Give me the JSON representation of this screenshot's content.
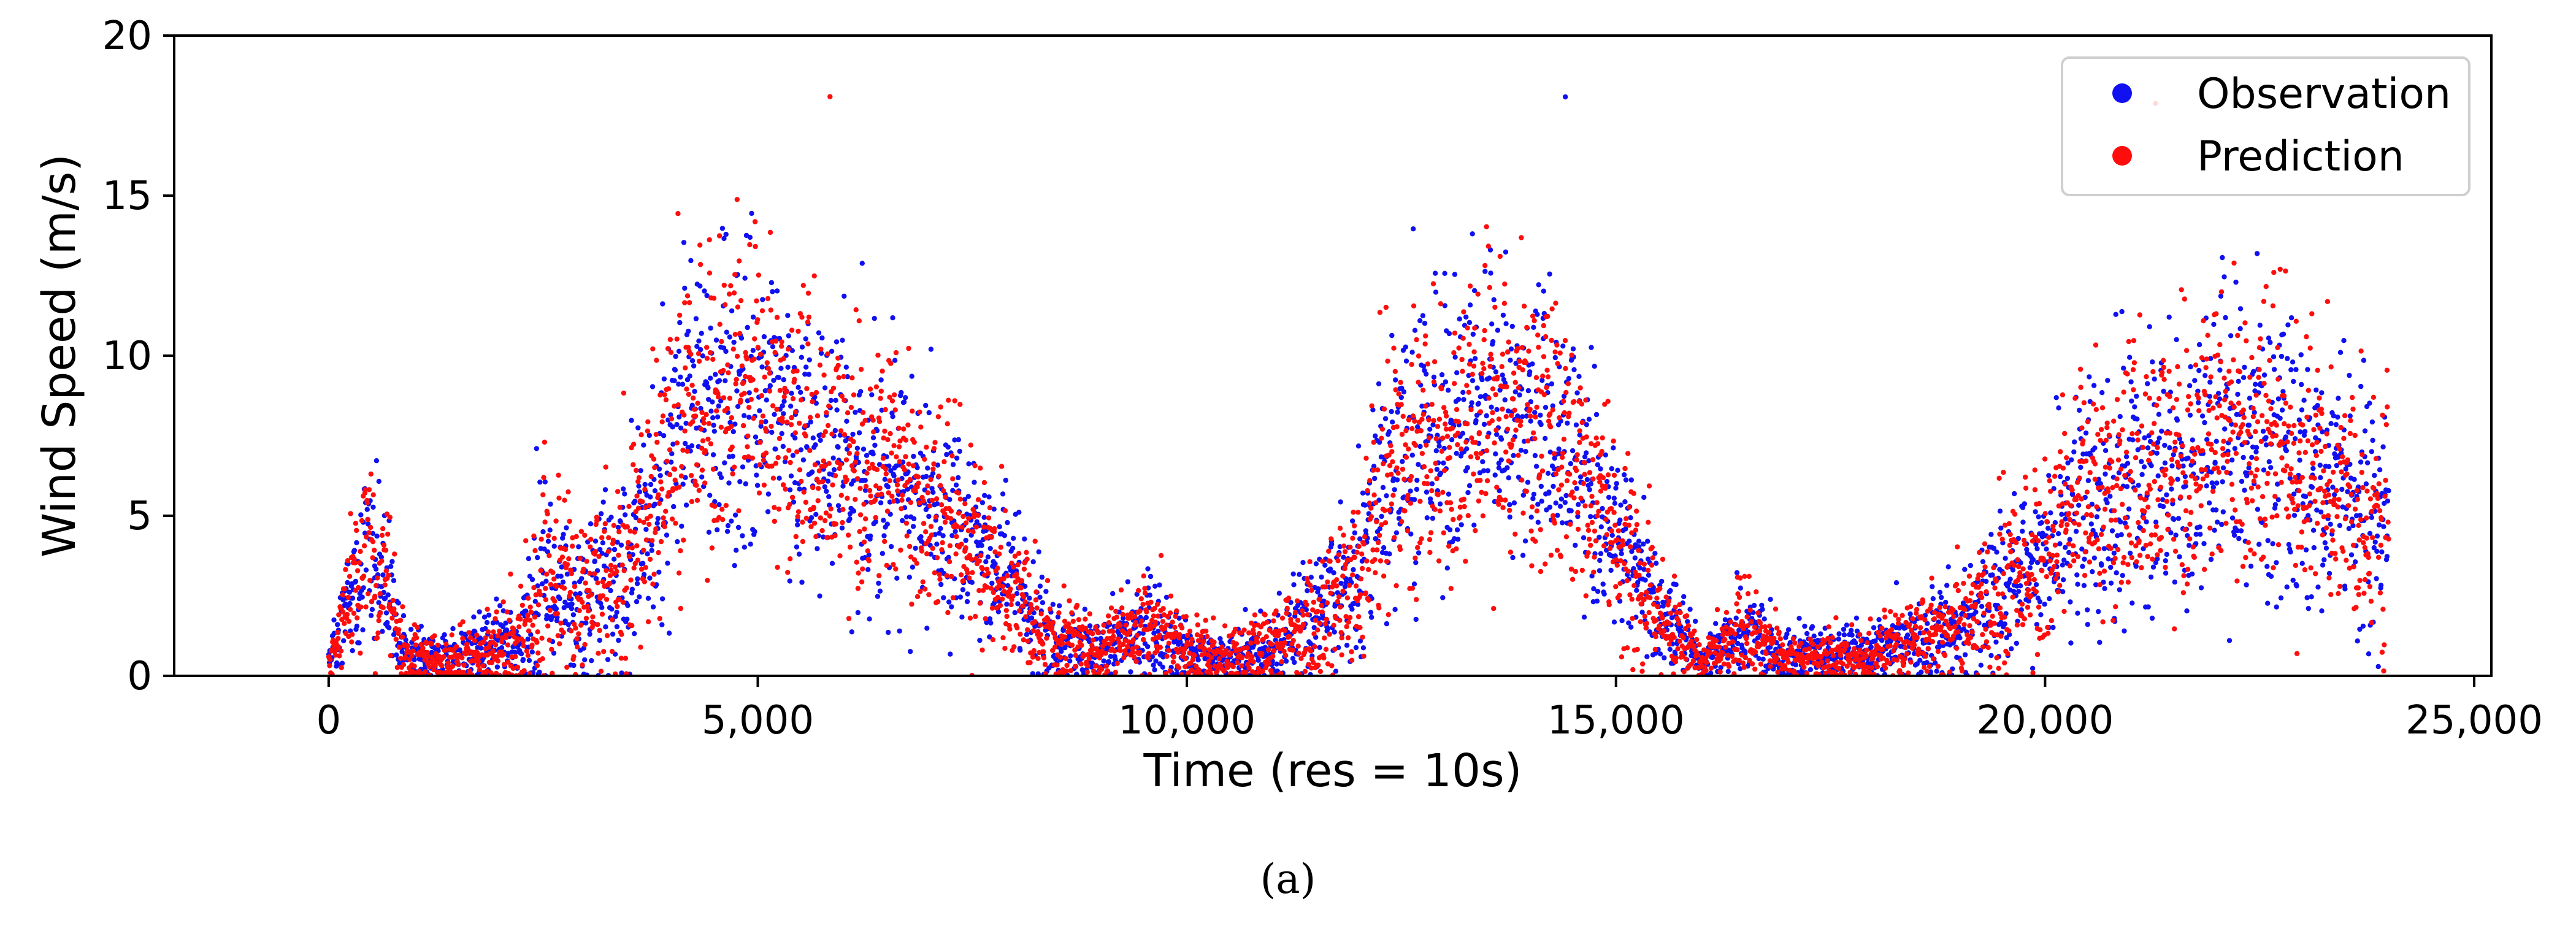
{
  "chart_data": {
    "type": "scatter",
    "title": "",
    "xlabel": "Time (res = 10s)",
    "ylabel": "Wind Speed (m/s)",
    "xlim": [
      -1800,
      25200
    ],
    "ylim": [
      0,
      20
    ],
    "xticks": [
      0,
      5000,
      10000,
      15000,
      20000,
      25000
    ],
    "xtick_labels": [
      "0",
      "5,000",
      "10,000",
      "15,000",
      "20,000",
      "25,000"
    ],
    "yticks": [
      0,
      5,
      10,
      15,
      20
    ],
    "ytick_labels": [
      "0",
      "5",
      "10",
      "15",
      "20"
    ],
    "grid": false,
    "legend_position": "top-right",
    "caption": "(a)",
    "n_points": 24000,
    "series": [
      {
        "name": "Observation",
        "color": "#1010f0"
      },
      {
        "name": "Prediction",
        "color": "#ff0d0d"
      }
    ],
    "envelope": {
      "description": "approximate central wind speed (m/s) and scatter spread (m/s) versus time index",
      "x": [
        0,
        200,
        450,
        650,
        900,
        1500,
        2200,
        2500,
        2700,
        3000,
        3500,
        4000,
        4500,
        5000,
        5500,
        6000,
        6500,
        7000,
        7500,
        8000,
        8500,
        9000,
        9500,
        10000,
        10500,
        11000,
        11500,
        12000,
        12200,
        13000,
        13500,
        14000,
        14500,
        15000,
        15500,
        16000,
        16500,
        17000,
        17500,
        18000,
        18500,
        19000,
        19500,
        20000,
        20500,
        21000,
        21500,
        22000,
        22500,
        23000,
        23500,
        24000
      ],
      "center": [
        0.4,
        2.0,
        4.0,
        3.0,
        0.6,
        0.5,
        1.0,
        3.0,
        2.5,
        2.0,
        3.5,
        7.0,
        8.5,
        8.5,
        7.5,
        6.5,
        6.2,
        5.0,
        4.0,
        2.5,
        1.0,
        0.7,
        1.5,
        0.8,
        0.5,
        0.9,
        1.6,
        3.0,
        6.0,
        7.5,
        8.0,
        8.0,
        7.0,
        4.0,
        2.0,
        0.4,
        1.5,
        0.6,
        0.6,
        0.7,
        1.0,
        1.6,
        2.5,
        3.5,
        5.5,
        6.0,
        6.5,
        7.0,
        7.2,
        6.5,
        5.5,
        4.5
      ],
      "spread": [
        0.3,
        1.2,
        2.0,
        1.5,
        0.5,
        0.6,
        1.0,
        2.5,
        1.8,
        1.5,
        2.2,
        2.8,
        3.2,
        3.2,
        3.0,
        2.6,
        2.6,
        2.2,
        2.0,
        1.5,
        0.8,
        0.6,
        1.0,
        0.7,
        0.5,
        0.8,
        1.2,
        1.6,
        2.6,
        3.0,
        3.0,
        2.8,
        2.6,
        2.0,
        1.2,
        0.4,
        1.0,
        0.5,
        0.5,
        0.6,
        0.8,
        1.0,
        1.5,
        2.0,
        2.6,
        2.8,
        2.8,
        3.0,
        3.0,
        2.8,
        2.6,
        2.2
      ]
    }
  }
}
